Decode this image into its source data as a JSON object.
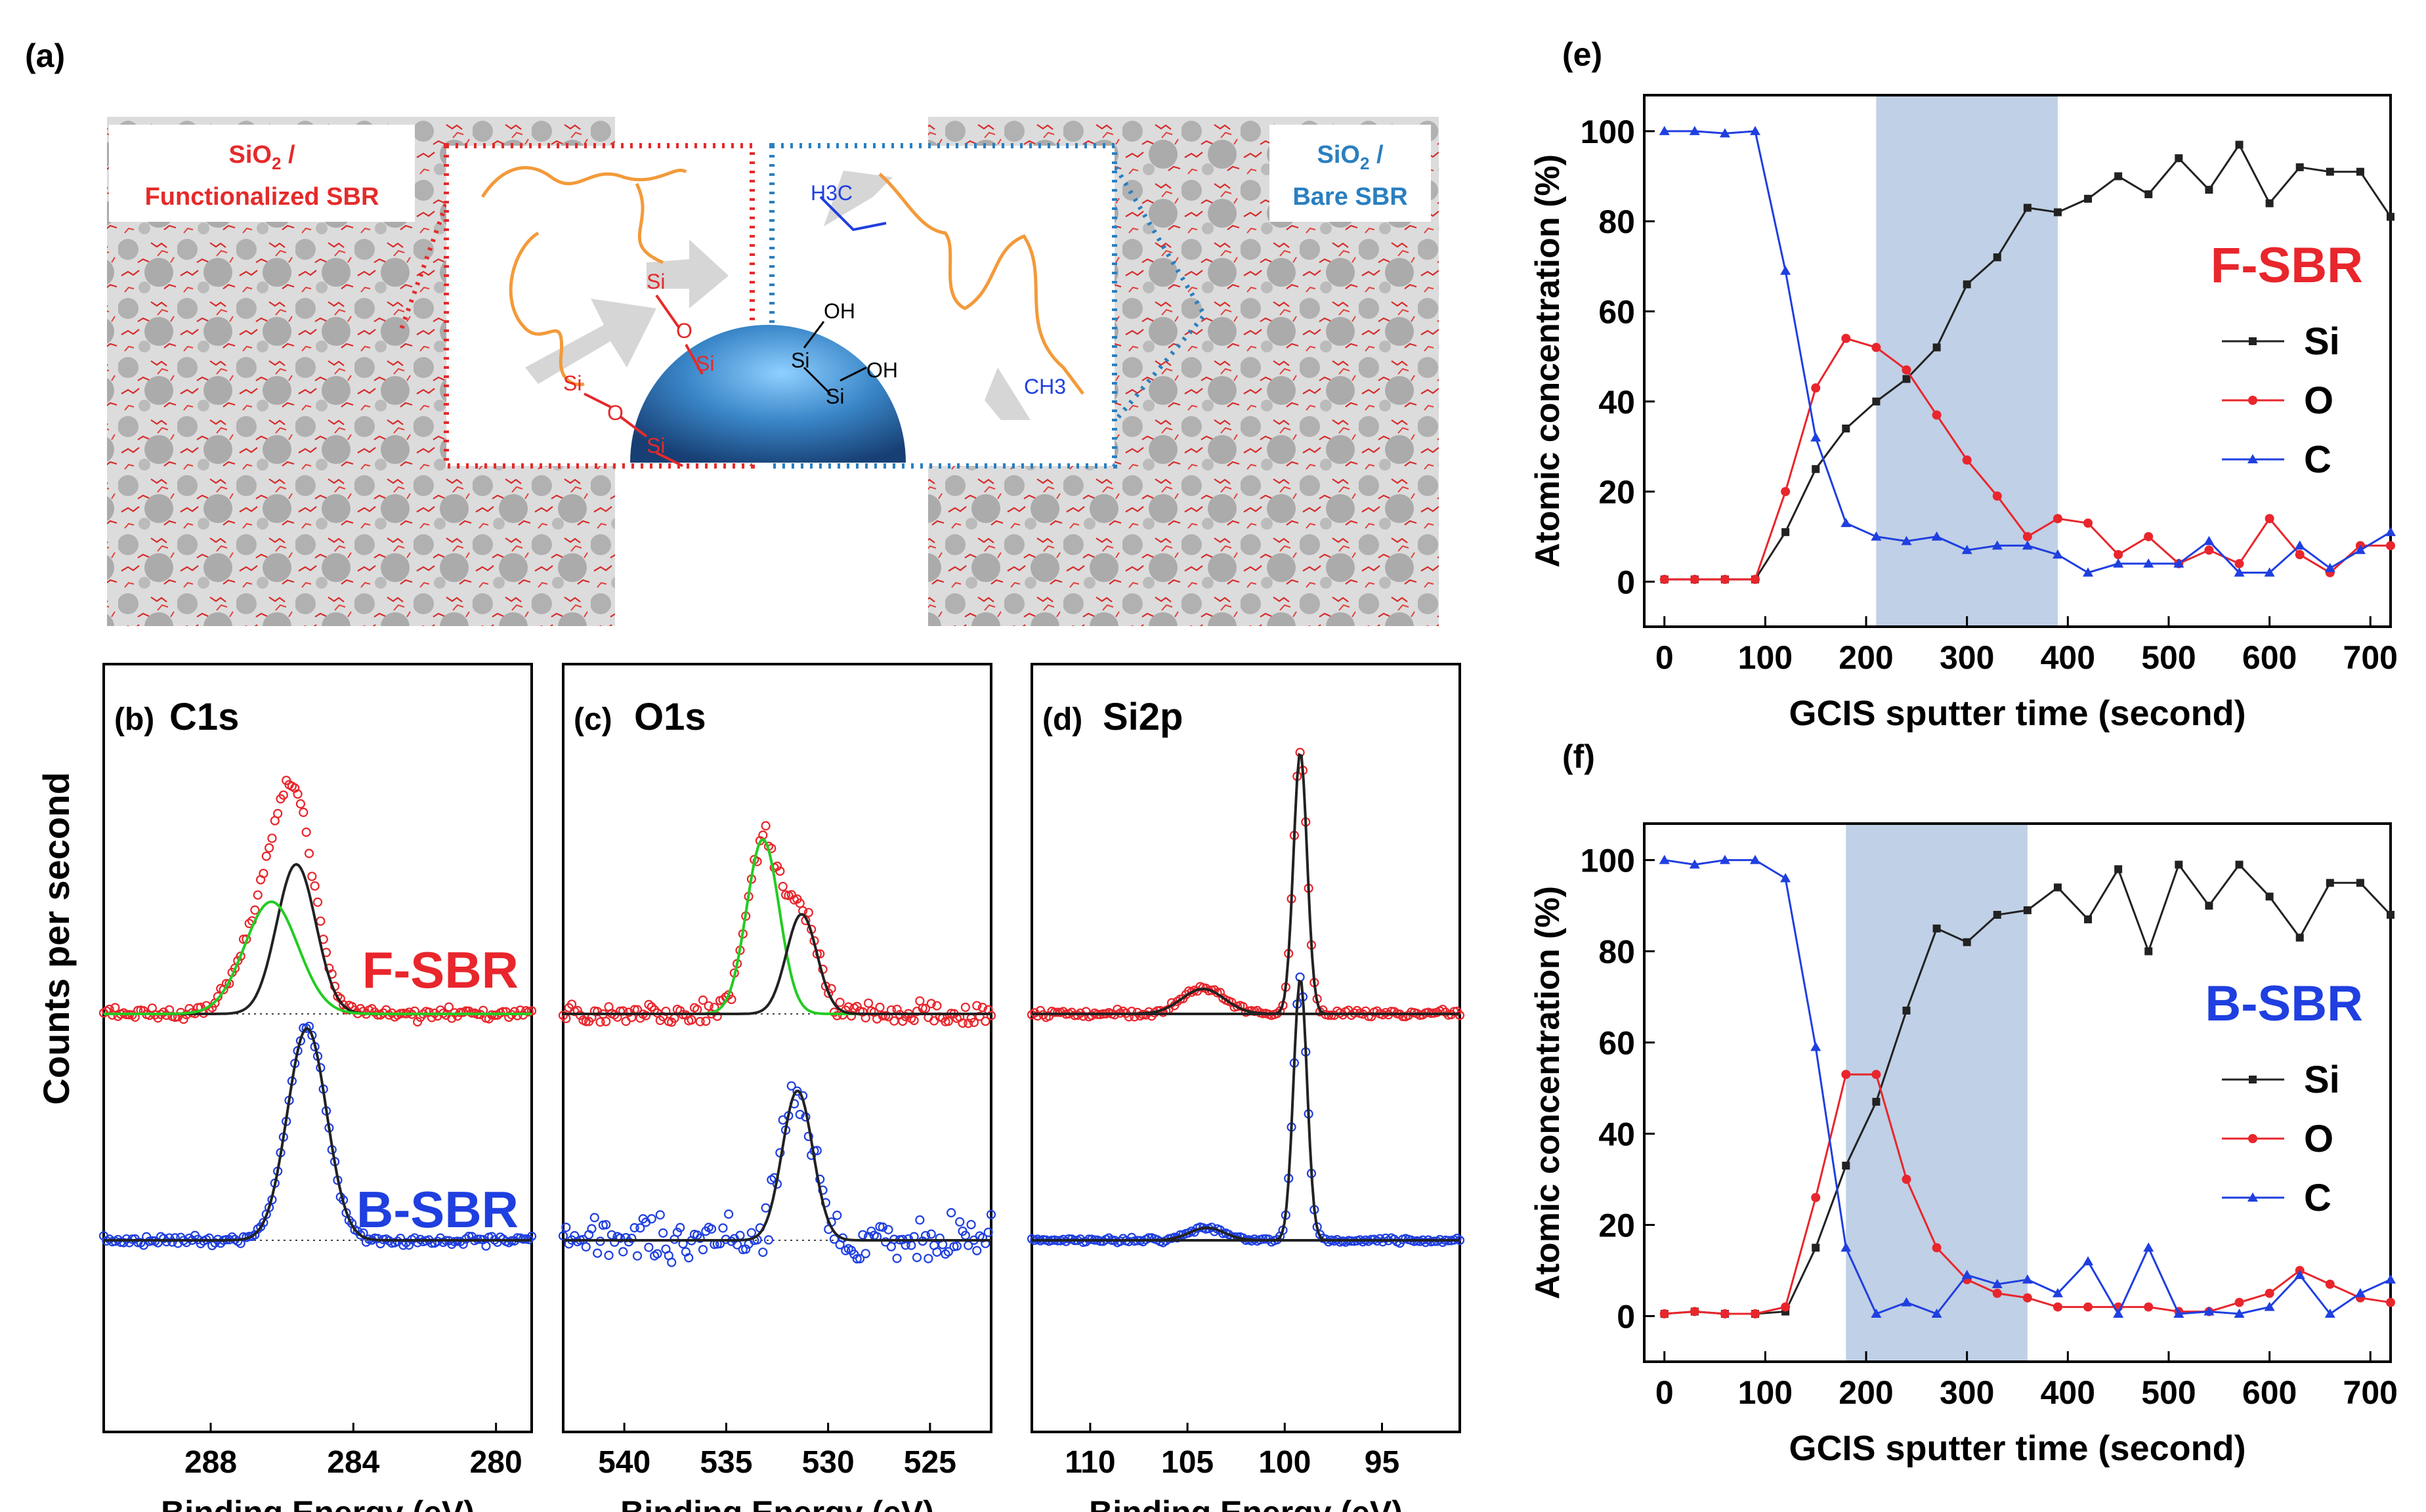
{
  "colors": {
    "red": "#e8262c",
    "blue": "#1f3fe0",
    "black": "#222222",
    "green": "#22cc22",
    "band": "#b9cbe3",
    "chain": "#f39a3a",
    "sphere": "#2f77b6",
    "sioRed": "#e52a2a",
    "bareBlue": "#2a7fc0"
  },
  "panel_a": {
    "label": "(a)",
    "left_caption_1": "SiO",
    "left_caption_sub": "2",
    "left_caption_2": " /",
    "left_caption_3": "Functionalized SBR",
    "right_caption_1": "SiO",
    "right_caption_sub": "2",
    "right_caption_2": " /",
    "right_caption_3": "Bare SBR",
    "chem": {
      "si": "Si",
      "o": "O",
      "oh": "OH",
      "h3c": "H3C",
      "ch3": "CH3"
    }
  },
  "xps_ylabel": "Counts per second",
  "chart_data": [
    {
      "id": "b",
      "type": "scatter",
      "title": "(b)",
      "element": "C1s",
      "xlabel": "Binding Energy (eV)",
      "xlim": [
        291,
        279
      ],
      "xticks": [
        288,
        284,
        280
      ],
      "series_labels": [
        "F-SBR",
        "B-SBR"
      ],
      "fsbr": {
        "base": 0.0,
        "peaks": [
          {
            "mu": 285.6,
            "sigma": 0.55,
            "amp": 0.6,
            "color": "black"
          },
          {
            "mu": 286.3,
            "sigma": 0.75,
            "amp": 0.45,
            "color": "green"
          }
        ],
        "noise": 0.02
      },
      "bsbr": {
        "base": 0.0,
        "peaks": [
          {
            "mu": 285.3,
            "sigma": 0.55,
            "amp": 0.85,
            "color": "black"
          }
        ],
        "noise": 0.015
      }
    },
    {
      "id": "c",
      "type": "scatter",
      "title": "(c)",
      "element": "O1s",
      "xlabel": "Binding Energy (eV)",
      "xlim": [
        543,
        522
      ],
      "xticks": [
        540,
        535,
        530,
        525
      ],
      "series_labels": [
        "",
        ""
      ],
      "fsbr": {
        "base": 0.0,
        "peaks": [
          {
            "mu": 533.2,
            "sigma": 0.8,
            "amp": 0.7,
            "color": "green"
          },
          {
            "mu": 531.3,
            "sigma": 0.75,
            "amp": 0.4,
            "color": "black"
          }
        ],
        "noise": 0.035
      },
      "bsbr": {
        "base": 0.0,
        "peaks": [
          {
            "mu": 531.5,
            "sigma": 0.75,
            "amp": 0.6,
            "color": "black"
          }
        ],
        "noise": 0.08
      }
    },
    {
      "id": "d",
      "type": "scatter",
      "title": "(d)",
      "element": "Si2p",
      "xlabel": "Binding Energy (eV)",
      "xlim": [
        113,
        91
      ],
      "xticks": [
        110,
        105,
        100,
        95
      ],
      "series_labels": [
        "",
        ""
      ],
      "fsbr": {
        "base": 0.0,
        "peaks": [
          {
            "mu": 99.2,
            "sigma": 0.35,
            "amp": 1.05,
            "color": "black"
          },
          {
            "mu": 104.2,
            "sigma": 1.1,
            "amp": 0.1,
            "color": "black"
          }
        ],
        "noise": 0.012
      },
      "bsbr": {
        "base": 0.0,
        "peaks": [
          {
            "mu": 99.2,
            "sigma": 0.35,
            "amp": 1.05,
            "color": "black"
          },
          {
            "mu": 104.0,
            "sigma": 0.9,
            "amp": 0.05,
            "color": "black"
          }
        ],
        "noise": 0.008
      }
    },
    {
      "id": "e",
      "type": "line",
      "title": "(e)",
      "sample": "F-SBR",
      "xlabel": "GCIS sputter time (second)",
      "ylabel": "Atomic concentration (%)",
      "xlim": [
        -20,
        720
      ],
      "ylim": [
        -10,
        108
      ],
      "xticks": [
        0,
        100,
        200,
        300,
        400,
        500,
        600,
        700
      ],
      "yticks": [
        0,
        20,
        40,
        60,
        80,
        100
      ],
      "band": [
        210,
        390
      ],
      "x": [
        0,
        30,
        60,
        90,
        120,
        150,
        180,
        210,
        240,
        270,
        300,
        330,
        360,
        390,
        420,
        450,
        480,
        510,
        540,
        570,
        600,
        630,
        660,
        690,
        720
      ],
      "series": [
        {
          "name": "Si",
          "color": "black",
          "marker": "square",
          "values": [
            0.5,
            0.5,
            0.5,
            0.5,
            11,
            25,
            34,
            40,
            45,
            52,
            66,
            72,
            83,
            82,
            85,
            90,
            86,
            94,
            87,
            97,
            84,
            92,
            91,
            91,
            81
          ]
        },
        {
          "name": "O",
          "color": "red",
          "marker": "circle",
          "values": [
            0.5,
            0.5,
            0.5,
            0.5,
            20,
            43,
            54,
            52,
            47,
            37,
            27,
            19,
            10,
            14,
            13,
            6,
            10,
            4,
            7,
            4,
            14,
            6,
            2,
            8,
            8
          ]
        },
        {
          "name": "C",
          "color": "blue",
          "marker": "triangle",
          "values": [
            100,
            100,
            99.5,
            100,
            69,
            32,
            13,
            10,
            9,
            10,
            7,
            8,
            8,
            6,
            2,
            4,
            4,
            4,
            9,
            2,
            2,
            8,
            3,
            7,
            11
          ]
        }
      ]
    },
    {
      "id": "f",
      "type": "line",
      "title": "(f)",
      "sample": "B-SBR",
      "xlabel": "GCIS sputter time (second)",
      "ylabel": "Atomic concentration (%)",
      "xlim": [
        -20,
        720
      ],
      "ylim": [
        -10,
        108
      ],
      "xticks": [
        0,
        100,
        200,
        300,
        400,
        500,
        600,
        700
      ],
      "yticks": [
        0,
        20,
        40,
        60,
        80,
        100
      ],
      "band": [
        180,
        360
      ],
      "x": [
        0,
        30,
        60,
        90,
        120,
        150,
        180,
        210,
        240,
        270,
        300,
        330,
        360,
        390,
        420,
        450,
        480,
        510,
        540,
        570,
        600,
        630,
        660,
        690,
        720
      ],
      "series": [
        {
          "name": "Si",
          "color": "black",
          "marker": "square",
          "values": [
            0.5,
            1,
            0.5,
            0.5,
            1,
            15,
            33,
            47,
            67,
            85,
            82,
            88,
            89,
            94,
            87,
            98,
            80,
            99,
            90,
            99,
            92,
            83,
            95,
            95,
            88
          ]
        },
        {
          "name": "O",
          "color": "red",
          "marker": "circle",
          "values": [
            0.5,
            1,
            0.5,
            0.5,
            2,
            26,
            53,
            53,
            30,
            15,
            8,
            5,
            4,
            2,
            2,
            2,
            2,
            1,
            1,
            3,
            5,
            10,
            7,
            4,
            3
          ]
        },
        {
          "name": "C",
          "color": "blue",
          "marker": "triangle",
          "values": [
            100,
            99,
            100,
            100,
            96,
            59,
            15,
            0.5,
            3,
            0.5,
            9,
            7,
            8,
            5,
            12,
            0.5,
            15,
            0.5,
            1,
            0.5,
            2,
            9,
            0.5,
            5,
            8
          ]
        }
      ]
    }
  ]
}
